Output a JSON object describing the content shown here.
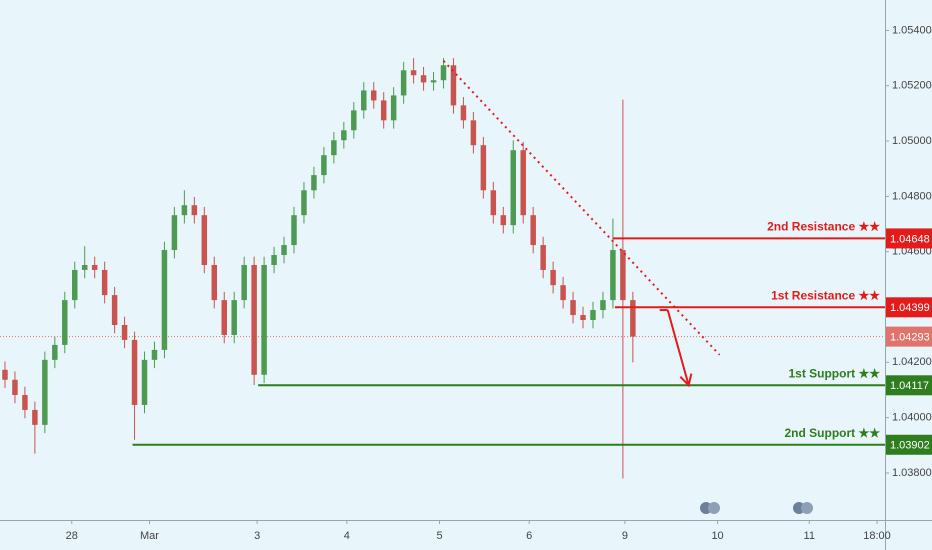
{
  "chart_data": {
    "type": "candlestick",
    "xlim": [
      -0.5,
      88.3
    ],
    "ylim": [
      1.0363,
      1.0551
    ],
    "xticks": [
      {
        "value": 6.7,
        "label": "28"
      },
      {
        "value": 14.5,
        "label": "Mar"
      },
      {
        "value": 25.3,
        "label": "3"
      },
      {
        "value": 34.3,
        "label": "4"
      },
      {
        "value": 43.6,
        "label": "5"
      },
      {
        "value": 52.6,
        "label": "6"
      },
      {
        "value": 62.2,
        "label": "9"
      },
      {
        "value": 71.5,
        "label": "10"
      },
      {
        "value": 80.7,
        "label": "11"
      },
      {
        "value": 87.5,
        "label": "18:00"
      }
    ],
    "yticks": [
      {
        "value": 1.054,
        "label": "1.05400"
      },
      {
        "value": 1.052,
        "label": "1.05200"
      },
      {
        "value": 1.05,
        "label": "1.05000"
      },
      {
        "value": 1.048,
        "label": "1.04800"
      },
      {
        "value": 1.046,
        "label": "1.04600"
      },
      {
        "value": 1.042,
        "label": "1.04200"
      },
      {
        "value": 1.04,
        "label": "1.04000"
      },
      {
        "value": 1.038,
        "label": "1.03800"
      }
    ],
    "up_color": "#4f9a52",
    "down_color": "#c9544f",
    "open": [
      1.04173,
      1.04137,
      1.04082,
      1.04028,
      1.03974,
      1.04209,
      1.04263,
      1.04425,
      1.04534,
      1.04552,
      1.04534,
      1.04443,
      1.04335,
      1.04281,
      1.04046,
      1.04209,
      1.04245,
      1.04606,
      1.04732,
      1.04768,
      1.04732,
      1.04552,
      1.04425,
      1.04299,
      1.04425,
      1.04552,
      1.04155,
      1.04552,
      1.04588,
      1.04624,
      1.04732,
      1.04822,
      1.04877,
      1.04949,
      1.05003,
      1.05039,
      1.05111,
      1.05183,
      1.05147,
      1.05075,
      1.05165,
      1.05256,
      1.05238,
      1.05212,
      1.0522,
      1.05274,
      1.05129,
      1.05075,
      1.04985,
      1.04822,
      1.04732,
      1.04696,
      1.04967,
      1.04732,
      1.04624,
      1.04534,
      1.04479,
      1.04425,
      1.04371,
      1.04353,
      1.04389,
      1.04425,
      1.04606,
      1.04425
    ],
    "high": [
      1.04203,
      1.04167,
      1.04112,
      1.04058,
      1.04239,
      1.04293,
      1.04455,
      1.04564,
      1.0462,
      1.04582,
      1.04564,
      1.04473,
      1.04365,
      1.04311,
      1.04239,
      1.04275,
      1.04636,
      1.04762,
      1.04822,
      1.04798,
      1.04762,
      1.04582,
      1.04455,
      1.04455,
      1.04582,
      1.04582,
      1.04582,
      1.04618,
      1.04654,
      1.04762,
      1.04852,
      1.04907,
      1.04979,
      1.05033,
      1.05069,
      1.05141,
      1.05213,
      1.05213,
      1.05177,
      1.05195,
      1.05286,
      1.053,
      1.05268,
      1.0525,
      1.053,
      1.053,
      1.05159,
      1.05105,
      1.05015,
      1.04852,
      1.04762,
      1.05003,
      1.04997,
      1.04762,
      1.04654,
      1.04564,
      1.04509,
      1.04455,
      1.04401,
      1.04419,
      1.04455,
      1.0472,
      1.0515,
      1.04455
    ],
    "low": [
      1.04107,
      1.04052,
      1.03998,
      1.0387,
      1.03944,
      1.04179,
      1.04233,
      1.04395,
      1.04504,
      1.04504,
      1.04413,
      1.04305,
      1.04251,
      1.0392,
      1.04016,
      1.04179,
      1.04215,
      1.04576,
      1.04702,
      1.04702,
      1.04522,
      1.04395,
      1.04269,
      1.04269,
      1.04395,
      1.04118,
      1.04125,
      1.04522,
      1.04558,
      1.04594,
      1.04702,
      1.04792,
      1.04847,
      1.04919,
      1.04973,
      1.05009,
      1.05081,
      1.05117,
      1.05045,
      1.05045,
      1.05135,
      1.05208,
      1.05182,
      1.05182,
      1.0519,
      1.05099,
      1.05045,
      1.04955,
      1.04792,
      1.04702,
      1.04666,
      1.04666,
      1.04702,
      1.04594,
      1.04504,
      1.04449,
      1.04395,
      1.04341,
      1.04323,
      1.04323,
      1.04359,
      1.04395,
      1.0378,
      1.042
    ],
    "close": [
      1.04137,
      1.04082,
      1.04028,
      1.03974,
      1.04209,
      1.04263,
      1.04425,
      1.04534,
      1.04552,
      1.04534,
      1.04443,
      1.04335,
      1.04281,
      1.04046,
      1.04209,
      1.04245,
      1.04606,
      1.04732,
      1.04768,
      1.04732,
      1.04552,
      1.04425,
      1.04299,
      1.04425,
      1.04552,
      1.04155,
      1.04552,
      1.04588,
      1.04624,
      1.04732,
      1.04822,
      1.04877,
      1.04949,
      1.05003,
      1.05039,
      1.05111,
      1.05183,
      1.05147,
      1.05075,
      1.05165,
      1.05256,
      1.05238,
      1.05212,
      1.0522,
      1.05274,
      1.05129,
      1.05075,
      1.04985,
      1.04822,
      1.04732,
      1.04696,
      1.04967,
      1.04732,
      1.04624,
      1.04534,
      1.04479,
      1.04425,
      1.04371,
      1.04353,
      1.04389,
      1.04425,
      1.04606,
      1.04425,
      1.04293
    ],
    "last_price": 1.04293,
    "last_price_color": "#e0736b",
    "levels": [
      {
        "label": "2nd Resistance ★★",
        "value": 1.04648,
        "start": 61,
        "color": "#e31b1b"
      },
      {
        "label": "1st Resistance ★★",
        "value": 1.04399,
        "start": 61.2,
        "color": "#e31b1b"
      },
      {
        "label": "1st Support ★★",
        "value": 1.04117,
        "start": 25.4,
        "color": "#2e7d1e"
      },
      {
        "label": "2nd Support ★★",
        "value": 1.03902,
        "start": 12.8,
        "color": "#2e7d1e"
      }
    ],
    "trendline": {
      "x": [
        44,
        71.7
      ],
      "y": [
        1.0529,
        1.04227
      ],
      "color": "#e31b1b"
    },
    "arrow": {
      "x": [
        66.5,
        68.6
      ],
      "y": [
        1.04389,
        1.04117
      ],
      "color": "#e31b1b"
    }
  }
}
